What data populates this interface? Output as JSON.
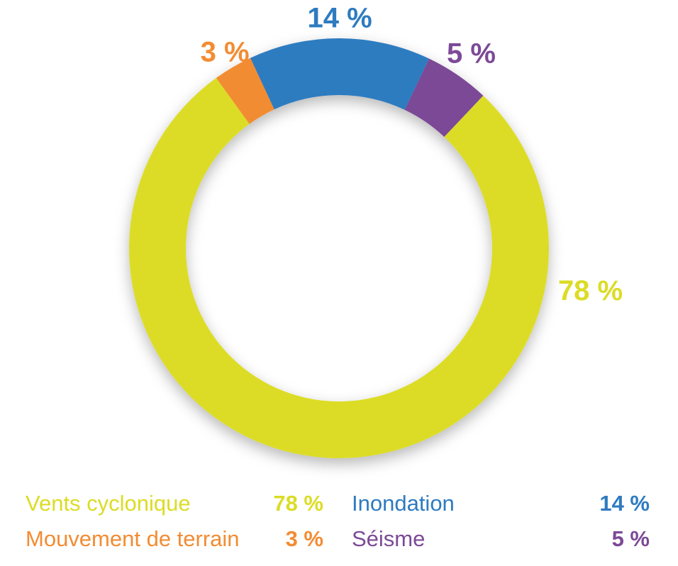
{
  "chart_data": {
    "type": "pie",
    "donut": true,
    "title": "",
    "series": [
      {
        "name": "Vents cyclonique",
        "value": 78,
        "label": "78 %",
        "color": "#DCDC26"
      },
      {
        "name": "Mouvement de terrain",
        "value": 3,
        "label": "3 %",
        "color": "#F28C33"
      },
      {
        "name": "Inondation",
        "value": 14,
        "label": "14 %",
        "color": "#2E7BC0"
      },
      {
        "name": "Séisme",
        "value": 5,
        "label": "5 %",
        "color": "#7C4996"
      }
    ],
    "slice_order_clockwise_from_top": [
      "Inondation",
      "Séisme",
      "Vents cyclonique",
      "Mouvement de terrain"
    ],
    "legend_placement": "bottom",
    "legend_layout": "two columns"
  }
}
